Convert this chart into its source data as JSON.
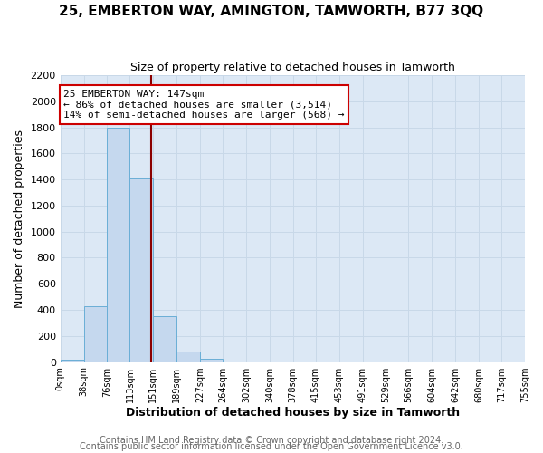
{
  "title1": "25, EMBERTON WAY, AMINGTON, TAMWORTH, B77 3QQ",
  "title2": "Size of property relative to detached houses in Tamworth",
  "xlabel": "Distribution of detached houses by size in Tamworth",
  "ylabel": "Number of detached properties",
  "bar_edges": [
    0,
    38,
    76,
    113,
    151,
    189,
    227,
    264,
    302,
    340,
    378,
    415,
    453,
    491,
    529,
    566,
    604,
    642,
    680,
    717,
    755
  ],
  "bar_heights": [
    20,
    430,
    1800,
    1410,
    350,
    80,
    25,
    0,
    0,
    0,
    0,
    0,
    0,
    0,
    0,
    0,
    0,
    0,
    0,
    0
  ],
  "bar_color": "#c5d8ee",
  "bar_edge_color": "#6aaed6",
  "property_size": 147,
  "vline_color": "#8b0000",
  "annotation_line1": "25 EMBERTON WAY: 147sqm",
  "annotation_line2": "← 86% of detached houses are smaller (3,514)",
  "annotation_line3": "14% of semi-detached houses are larger (568) →",
  "annotation_box_color": "#ffffff",
  "annotation_box_edge_color": "#cc0000",
  "ylim": [
    0,
    2200
  ],
  "yticks": [
    0,
    200,
    400,
    600,
    800,
    1000,
    1200,
    1400,
    1600,
    1800,
    2000,
    2200
  ],
  "xtick_labels": [
    "0sqm",
    "38sqm",
    "76sqm",
    "113sqm",
    "151sqm",
    "189sqm",
    "227sqm",
    "264sqm",
    "302sqm",
    "340sqm",
    "378sqm",
    "415sqm",
    "453sqm",
    "491sqm",
    "529sqm",
    "566sqm",
    "604sqm",
    "642sqm",
    "680sqm",
    "717sqm",
    "755sqm"
  ],
  "footer1": "Contains HM Land Registry data © Crown copyright and database right 2024.",
  "footer2": "Contains public sector information licensed under the Open Government Licence v3.0.",
  "grid_color": "#c8d8e8",
  "bg_color": "#dce8f5",
  "title1_fontsize": 11,
  "title2_fontsize": 9,
  "xlabel_fontsize": 9,
  "ylabel_fontsize": 9,
  "annotation_fontsize": 8,
  "footer_fontsize": 7,
  "footer_color": "#666666"
}
